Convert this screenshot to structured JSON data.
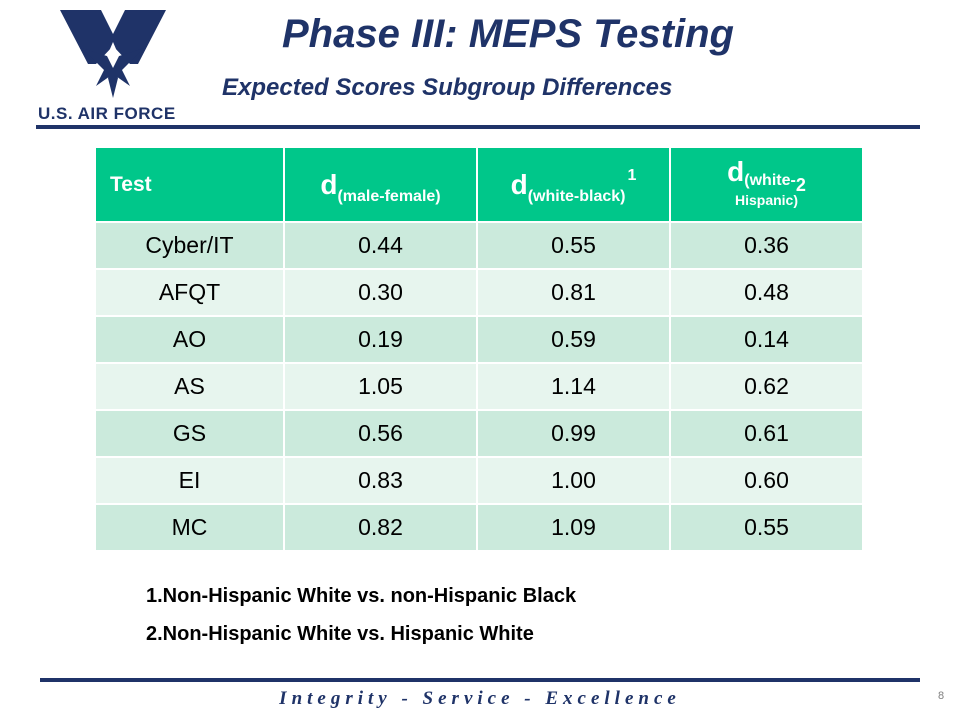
{
  "header": {
    "logo_text": "U.S. AIR FORCE",
    "title": "Phase III: MEPS Testing",
    "subtitle": "Expected Scores Subgroup Differences"
  },
  "table": {
    "headers": [
      {
        "label": "Test"
      },
      {
        "d": "d",
        "sub": "(male-female)",
        "sup": ""
      },
      {
        "d": "d",
        "sub": "(white-black)",
        "sup": "1"
      },
      {
        "d": "d",
        "sub_line1": "(white-",
        "sub_line2": "Hispanic)",
        "sup": "2"
      }
    ],
    "rows": [
      [
        "Cyber/IT",
        "0.44",
        "0.55",
        "0.36"
      ],
      [
        "AFQT",
        "0.30",
        "0.81",
        "0.48"
      ],
      [
        "AO",
        "0.19",
        "0.59",
        "0.14"
      ],
      [
        "AS",
        "1.05",
        "1.14",
        "0.62"
      ],
      [
        "GS",
        "0.56",
        "0.99",
        "0.61"
      ],
      [
        "EI",
        "0.83",
        "1.00",
        "0.60"
      ],
      [
        "MC",
        "0.82",
        "1.09",
        "0.55"
      ]
    ]
  },
  "notes": [
    "1.Non-Hispanic White vs. non-Hispanic Black",
    "2.Non-Hispanic White vs. Hispanic White"
  ],
  "footer": {
    "motto": "Integrity - Service - Excellence",
    "page_number": "8"
  },
  "colors": {
    "navy": "#1f3368",
    "header_green": "#00c78a",
    "row_dark": "#cbeadc",
    "row_light": "#e7f5ee"
  }
}
